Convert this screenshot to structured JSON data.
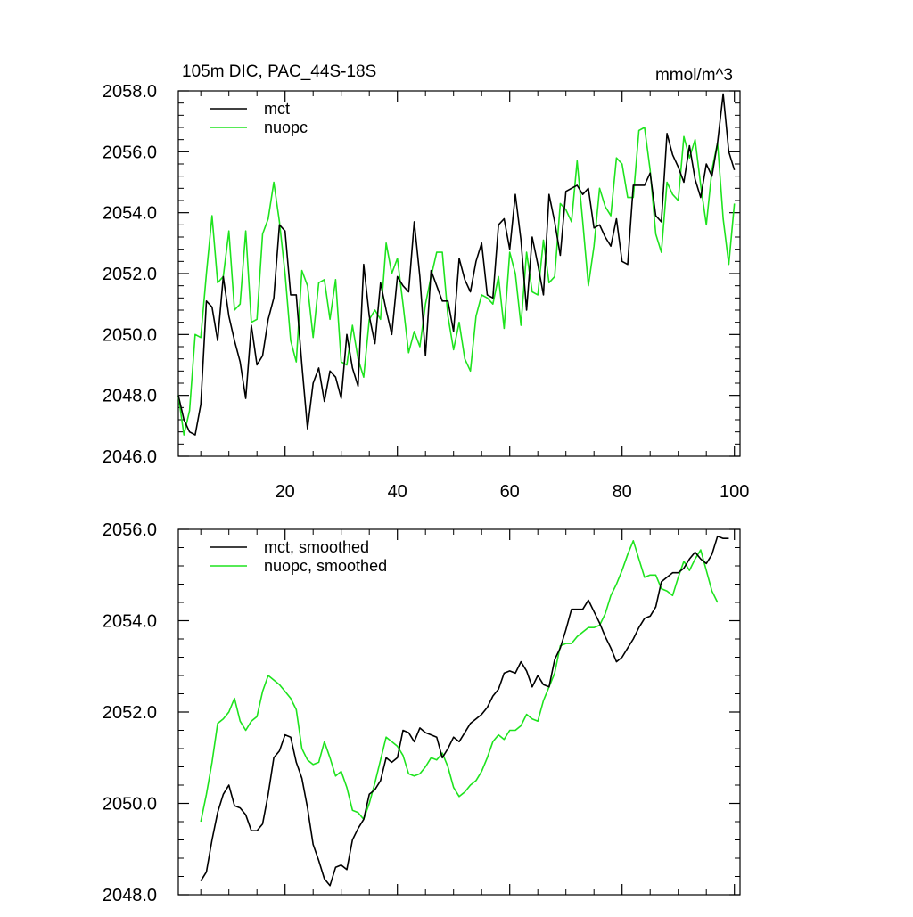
{
  "chart_data": [
    {
      "type": "line",
      "title": "105m DIC, PAC_44S-18S",
      "units": "mmol/m^3",
      "xlabel": "",
      "ylabel": "",
      "xlim": [
        1,
        101
      ],
      "ylim": [
        2046,
        2058
      ],
      "xticks": [
        20,
        40,
        60,
        80,
        100
      ],
      "xtick_labels": [
        "20",
        "40",
        "60",
        "80",
        "100"
      ],
      "yticks": [
        2046,
        2048,
        2050,
        2052,
        2054,
        2056,
        2058
      ],
      "ytick_labels": [
        "2046.0",
        "2048.0",
        "2050.0",
        "2052.0",
        "2054.0",
        "2056.0",
        "2058.0"
      ],
      "legend": "top-left",
      "grid": false,
      "x_start": 1,
      "series": [
        {
          "name": "mct",
          "color": "#000000",
          "values": [
            2048.0,
            2047.2,
            2046.8,
            2046.7,
            2047.7,
            2051.1,
            2050.9,
            2049.8,
            2051.9,
            2050.6,
            2049.8,
            2049.1,
            2047.9,
            2050.3,
            2049.0,
            2049.3,
            2050.5,
            2051.2,
            2053.6,
            2053.4,
            2051.3,
            2051.3,
            2049.0,
            2046.9,
            2048.4,
            2048.9,
            2047.8,
            2048.8,
            2048.6,
            2047.9,
            2050.0,
            2048.9,
            2048.3,
            2052.3,
            2050.6,
            2049.7,
            2051.7,
            2050.8,
            2050.0,
            2051.9,
            2051.6,
            2051.4,
            2053.7,
            2051.9,
            2049.3,
            2052.1,
            2051.6,
            2051.1,
            2051.1,
            2050.1,
            2052.5,
            2051.8,
            2051.4,
            2052.4,
            2053.0,
            2051.3,
            2051.2,
            2053.6,
            2053.8,
            2052.8,
            2054.6,
            2053.1,
            2050.8,
            2053.2,
            2052.3,
            2051.3,
            2054.6,
            2053.7,
            2052.6,
            2054.7,
            2054.8,
            2054.9,
            2054.6,
            2054.8,
            2053.5,
            2053.6,
            2053.2,
            2052.9,
            2053.8,
            2052.4,
            2052.3,
            2054.9,
            2054.9,
            2054.9,
            2055.3,
            2053.9,
            2053.7,
            2056.6,
            2055.9,
            2055.5,
            2055.0,
            2056.2,
            2055.1,
            2054.5,
            2055.6,
            2055.2,
            2056.3,
            2057.9,
            2056.0,
            2055.4
          ]
        },
        {
          "name": "nuopc",
          "color": "#1ee31e",
          "values": [
            2048.0,
            2046.7,
            2047.5,
            2050.0,
            2049.9,
            2052.0,
            2053.9,
            2051.7,
            2051.9,
            2053.4,
            2050.8,
            2051.0,
            2053.4,
            2050.4,
            2050.5,
            2053.3,
            2053.8,
            2055.0,
            2053.7,
            2052.0,
            2049.8,
            2049.1,
            2052.1,
            2051.6,
            2049.9,
            2051.7,
            2051.8,
            2050.5,
            2051.8,
            2049.1,
            2049.0,
            2050.3,
            2049.2,
            2048.6,
            2050.5,
            2050.8,
            2050.5,
            2053.0,
            2052.0,
            2052.5,
            2051.0,
            2049.4,
            2050.1,
            2049.6,
            2051.0,
            2051.9,
            2052.7,
            2052.7,
            2050.6,
            2049.5,
            2050.4,
            2049.2,
            2048.8,
            2050.6,
            2051.3,
            2051.2,
            2051.0,
            2051.9,
            2050.2,
            2052.7,
            2052.0,
            2050.3,
            2052.7,
            2051.4,
            2051.3,
            2053.1,
            2051.7,
            2051.9,
            2054.3,
            2054.1,
            2053.7,
            2055.7,
            2053.7,
            2051.6,
            2052.9,
            2054.8,
            2054.2,
            2053.9,
            2055.8,
            2055.6,
            2054.5,
            2054.5,
            2056.7,
            2056.8,
            2055.4,
            2053.3,
            2052.7,
            2055.0,
            2054.6,
            2054.4,
            2056.5,
            2055.8,
            2056.4,
            2054.9,
            2053.6,
            2055.4,
            2056.3,
            2053.8,
            2052.3,
            2054.3
          ]
        }
      ]
    },
    {
      "type": "line",
      "title": "",
      "xlabel": "",
      "ylabel": "",
      "xlim": [
        1,
        101
      ],
      "ylim": [
        2048,
        2056
      ],
      "xticks": [
        20,
        40,
        60,
        80,
        100
      ],
      "xtick_labels": [
        "",
        "",
        "",
        "",
        ""
      ],
      "yticks": [
        2048,
        2050,
        2052,
        2054,
        2056
      ],
      "ytick_labels": [
        "2048.0",
        "2050.0",
        "2052.0",
        "2054.0",
        "2056.0"
      ],
      "legend": "top-left",
      "grid": false,
      "x_start": 5,
      "series": [
        {
          "name": "mct, smoothed",
          "color": "#000000",
          "values": [
            2048.3,
            2048.5,
            2049.2,
            2049.8,
            2050.2,
            2050.4,
            2049.95,
            2049.9,
            2049.75,
            2049.4,
            2049.4,
            2049.55,
            2050.2,
            2051.0,
            2051.15,
            2051.5,
            2051.45,
            2050.9,
            2050.55,
            2049.9,
            2049.1,
            2048.75,
            2048.35,
            2048.2,
            2048.6,
            2048.65,
            2048.55,
            2049.2,
            2049.45,
            2049.65,
            2050.2,
            2050.3,
            2050.5,
            2051.0,
            2050.9,
            2051.0,
            2051.6,
            2051.55,
            2051.35,
            2051.65,
            2051.55,
            2051.5,
            2051.45,
            2051.0,
            2051.2,
            2051.45,
            2051.35,
            2051.55,
            2051.75,
            2051.85,
            2051.95,
            2052.1,
            2052.35,
            2052.5,
            2052.85,
            2052.9,
            2052.85,
            2053.1,
            2052.9,
            2052.55,
            2052.8,
            2052.6,
            2052.55,
            2053.15,
            2053.4,
            2053.8,
            2054.25,
            2054.25,
            2054.25,
            2054.45,
            2054.2,
            2053.95,
            2053.65,
            2053.4,
            2053.1,
            2053.2,
            2053.4,
            2053.6,
            2053.85,
            2054.05,
            2054.1,
            2054.3,
            2054.85,
            2054.95,
            2055.05,
            2055.05,
            2055.15,
            2055.35,
            2055.5,
            2055.35,
            2055.25,
            2055.45,
            2055.85,
            2055.8,
            2055.8
          ]
        },
        {
          "name": "nuopc, smoothed",
          "color": "#1ee31e",
          "values": [
            2049.6,
            2050.2,
            2050.9,
            2051.75,
            2051.85,
            2052.0,
            2052.3,
            2051.8,
            2051.6,
            2051.8,
            2051.9,
            2052.45,
            2052.8,
            2052.7,
            2052.6,
            2052.45,
            2052.3,
            2052.05,
            2051.2,
            2050.95,
            2050.85,
            2050.9,
            2051.35,
            2051.0,
            2050.6,
            2050.7,
            2050.35,
            2049.85,
            2049.8,
            2049.65,
            2050.0,
            2050.45,
            2050.95,
            2051.45,
            2051.35,
            2051.25,
            2051.05,
            2050.65,
            2050.6,
            2050.65,
            2050.8,
            2051.0,
            2050.95,
            2051.1,
            2050.8,
            2050.35,
            2050.15,
            2050.25,
            2050.4,
            2050.5,
            2050.7,
            2051.0,
            2051.35,
            2051.5,
            2051.4,
            2051.6,
            2051.6,
            2051.7,
            2051.95,
            2051.85,
            2051.8,
            2052.25,
            2052.55,
            2052.85,
            2053.45,
            2053.5,
            2053.5,
            2053.65,
            2053.75,
            2053.85,
            2053.85,
            2053.9,
            2054.15,
            2054.55,
            2054.8,
            2055.1,
            2055.45,
            2055.75,
            2055.35,
            2054.95,
            2055.0,
            2055.0,
            2054.7,
            2054.65,
            2054.55,
            2054.95,
            2055.3,
            2055.1,
            2055.35,
            2055.55,
            2055.1,
            2054.65,
            2054.4
          ]
        }
      ]
    }
  ]
}
